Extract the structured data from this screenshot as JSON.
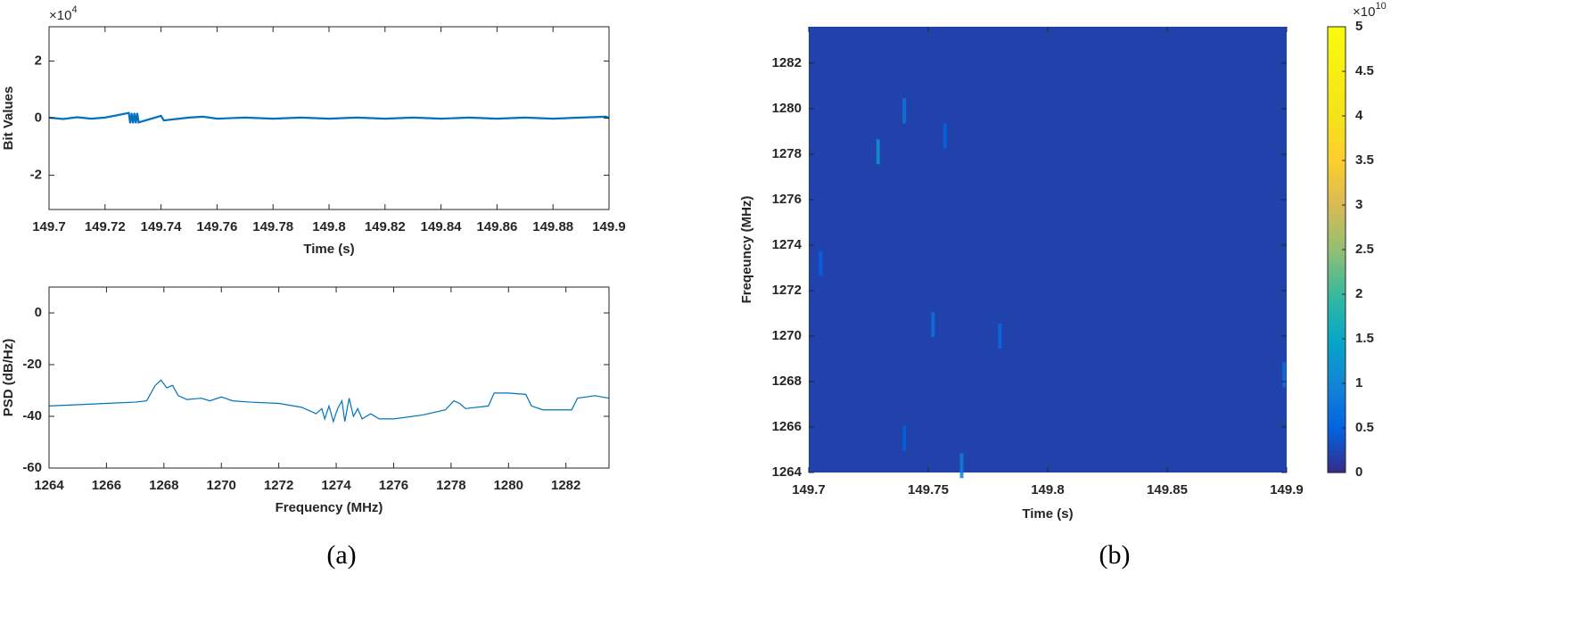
{
  "chart_data": [
    {
      "type": "line",
      "ylabel": "Bit Values",
      "xlabel": "Time (s)",
      "y_scale_label": {
        "base": "×10",
        "power": "4"
      },
      "xlim": [
        149.7,
        149.9
      ],
      "ylim": [
        -3.2,
        3.2
      ],
      "xticks": [
        149.7,
        149.72,
        149.74,
        149.76,
        149.78,
        149.8,
        149.82,
        149.84,
        149.86,
        149.88,
        149.9
      ],
      "yticks": [
        -2,
        0,
        2
      ],
      "color": "#0072bd",
      "x": [
        149.7,
        149.705,
        149.71,
        149.715,
        149.72,
        149.7285,
        149.729,
        149.7295,
        149.73,
        149.7305,
        149.731,
        149.7315,
        149.732,
        149.74,
        149.741,
        149.75,
        149.755,
        149.76,
        149.77,
        149.78,
        149.79,
        149.8,
        149.81,
        149.82,
        149.83,
        149.84,
        149.85,
        149.86,
        149.87,
        149.88,
        149.89,
        149.899,
        149.9
      ],
      "values": [
        0.02,
        -0.03,
        0.03,
        -0.02,
        0.02,
        0.18,
        -0.18,
        0.18,
        -0.18,
        0.18,
        -0.18,
        0.18,
        -0.15,
        0.08,
        -0.08,
        0.02,
        0.05,
        -0.02,
        0.02,
        -0.02,
        0.02,
        -0.02,
        0.02,
        -0.02,
        0.02,
        -0.02,
        0.02,
        -0.02,
        0.02,
        -0.02,
        0.02,
        0.05,
        0
      ]
    },
    {
      "type": "line",
      "ylabel": "PSD (dB/Hz)",
      "xlabel": "Frequency (MHz)",
      "caption": "(a)",
      "xlim": [
        1264,
        1283.5
      ],
      "ylim": [
        -60,
        10
      ],
      "xticks": [
        1264,
        1266,
        1268,
        1270,
        1272,
        1274,
        1276,
        1278,
        1280,
        1282
      ],
      "yticks": [
        -60,
        -40,
        -20,
        0
      ],
      "color": "#0072bd",
      "x": [
        1264,
        1266,
        1267,
        1267.4,
        1267.7,
        1267.9,
        1268.1,
        1268.3,
        1268.5,
        1268.8,
        1269.3,
        1269.6,
        1270,
        1270.4,
        1271,
        1272,
        1272.8,
        1273.3,
        1273.5,
        1273.6,
        1273.75,
        1273.9,
        1274.05,
        1274.2,
        1274.3,
        1274.45,
        1274.6,
        1274.75,
        1274.9,
        1275.2,
        1275.5,
        1276,
        1277,
        1277.8,
        1278.1,
        1278.3,
        1278.5,
        1279.3,
        1279.5,
        1280,
        1280.6,
        1280.8,
        1281.2,
        1282.2,
        1282.4,
        1283,
        1283.5
      ],
      "values": [
        -36,
        -35,
        -34.5,
        -34,
        -28,
        -26,
        -29,
        -28,
        -32,
        -33.5,
        -33,
        -34,
        -32.5,
        -34,
        -34.5,
        -35,
        -36.5,
        -39,
        -37,
        -41,
        -36,
        -42,
        -37,
        -34,
        -42,
        -33,
        -40,
        -37,
        -41,
        -39,
        -41,
        -41,
        -39.5,
        -37.5,
        -34,
        -35,
        -37,
        -36,
        -31,
        -31,
        -31.5,
        -36,
        -37.5,
        -37.5,
        -33,
        -32,
        -33
      ]
    },
    {
      "type": "heatmap",
      "ylabel": "Freqeuncy (MHz)",
      "xlabel": "Time (s)",
      "caption": "(b)",
      "xlim": [
        149.7,
        149.9
      ],
      "ylim": [
        1264,
        1283.6
      ],
      "xticks": [
        149.7,
        149.75,
        149.8,
        149.85,
        149.9
      ],
      "yticks": [
        1264,
        1266,
        1268,
        1270,
        1272,
        1274,
        1276,
        1278,
        1280,
        1282
      ],
      "colormap": "parula",
      "clim": [
        0,
        5
      ],
      "cticks": [
        0,
        0.5,
        1,
        1.5,
        2,
        2.5,
        3,
        3.5,
        4,
        4.5,
        5
      ],
      "c_scale_label": {
        "base": "×10",
        "power": "10"
      },
      "background": 0.2,
      "x": [
        149.729,
        149.74,
        149.752,
        149.78,
        149.764,
        149.899,
        149.705,
        149.757,
        149.74
      ],
      "y": [
        1278.1,
        1279.9,
        1270.5,
        1270.0,
        1264.3,
        1268.3,
        1273.2,
        1278.8,
        1265.5
      ],
      "values": [
        1.2,
        0.8,
        0.7,
        0.6,
        0.9,
        0.7,
        0.5,
        0.5,
        0.5
      ]
    }
  ]
}
